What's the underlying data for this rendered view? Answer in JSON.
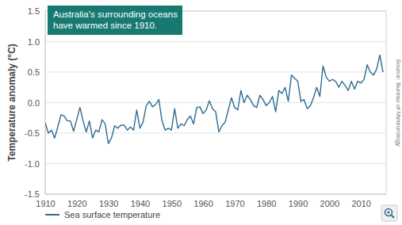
{
  "chart_data": {
    "type": "line",
    "annotation": [
      "Australia's surrounding oceans",
      "have warmed since 1910."
    ],
    "y_label": "Temperature anomaly (°C)",
    "source": "Source: Bureau of Meteorology",
    "x": [
      1910,
      1911,
      1912,
      1913,
      1914,
      1915,
      1916,
      1917,
      1918,
      1919,
      1920,
      1921,
      1922,
      1923,
      1924,
      1925,
      1926,
      1927,
      1928,
      1929,
      1930,
      1931,
      1932,
      1933,
      1934,
      1935,
      1936,
      1937,
      1938,
      1939,
      1940,
      1941,
      1942,
      1943,
      1944,
      1945,
      1946,
      1947,
      1948,
      1949,
      1950,
      1951,
      1952,
      1953,
      1954,
      1955,
      1956,
      1957,
      1958,
      1959,
      1960,
      1961,
      1962,
      1963,
      1964,
      1965,
      1966,
      1967,
      1968,
      1969,
      1970,
      1971,
      1972,
      1973,
      1974,
      1975,
      1976,
      1977,
      1978,
      1979,
      1980,
      1981,
      1982,
      1983,
      1984,
      1985,
      1986,
      1987,
      1988,
      1989,
      1990,
      1991,
      1992,
      1993,
      1994,
      1995,
      1996,
      1997,
      1998,
      1999,
      2000,
      2001,
      2002,
      2003,
      2004,
      2005,
      2006,
      2007,
      2008,
      2009,
      2010,
      2011,
      2012,
      2013,
      2014,
      2015,
      2016,
      2017
    ],
    "series": [
      {
        "name": "Sea surface temperature",
        "color": "#2b6c95",
        "values": [
          -0.33,
          -0.5,
          -0.45,
          -0.58,
          -0.4,
          -0.2,
          -0.22,
          -0.3,
          -0.3,
          -0.47,
          -0.28,
          -0.08,
          -0.3,
          -0.48,
          -0.3,
          -0.58,
          -0.45,
          -0.48,
          -0.28,
          -0.35,
          -0.67,
          -0.58,
          -0.38,
          -0.42,
          -0.37,
          -0.37,
          -0.45,
          -0.4,
          -0.45,
          -0.12,
          -0.42,
          -0.32,
          -0.05,
          0.02,
          -0.07,
          -0.03,
          0.05,
          -0.3,
          -0.45,
          -0.42,
          -0.45,
          -0.1,
          -0.42,
          -0.35,
          -0.38,
          -0.28,
          -0.22,
          -0.35,
          -0.08,
          -0.07,
          -0.18,
          -0.12,
          0.03,
          -0.1,
          -0.15,
          -0.48,
          -0.38,
          -0.32,
          -0.12,
          0.08,
          -0.08,
          -0.12,
          0.2,
          0.0,
          0.12,
          0.05,
          -0.05,
          -0.08,
          0.12,
          0.05,
          -0.05,
          0.0,
          0.1,
          -0.15,
          0.2,
          0.15,
          0.25,
          0.02,
          0.45,
          0.4,
          0.35,
          0.02,
          0.05,
          -0.1,
          -0.05,
          0.08,
          0.25,
          0.1,
          0.6,
          0.42,
          0.35,
          0.38,
          0.35,
          0.25,
          0.35,
          0.28,
          0.2,
          0.35,
          0.22,
          0.35,
          0.32,
          0.38,
          0.62,
          0.5,
          0.45,
          0.55,
          0.78,
          0.5
        ]
      }
    ],
    "xlim": [
      1910,
      2018
    ],
    "xticks": [
      1910,
      1920,
      1930,
      1940,
      1950,
      1960,
      1970,
      1980,
      1990,
      2000,
      2010
    ],
    "ylim": [
      -1.5,
      1.5
    ],
    "yticks": [
      -1.5,
      {
        "value": -1,
        "label": "-1.0"
      },
      -0.5,
      {
        "value": 0,
        "label": "0.0"
      },
      0.5,
      {
        "value": 1,
        "label": "1.0"
      },
      1.5
    ],
    "grid": true,
    "legend": "bottom-left"
  }
}
